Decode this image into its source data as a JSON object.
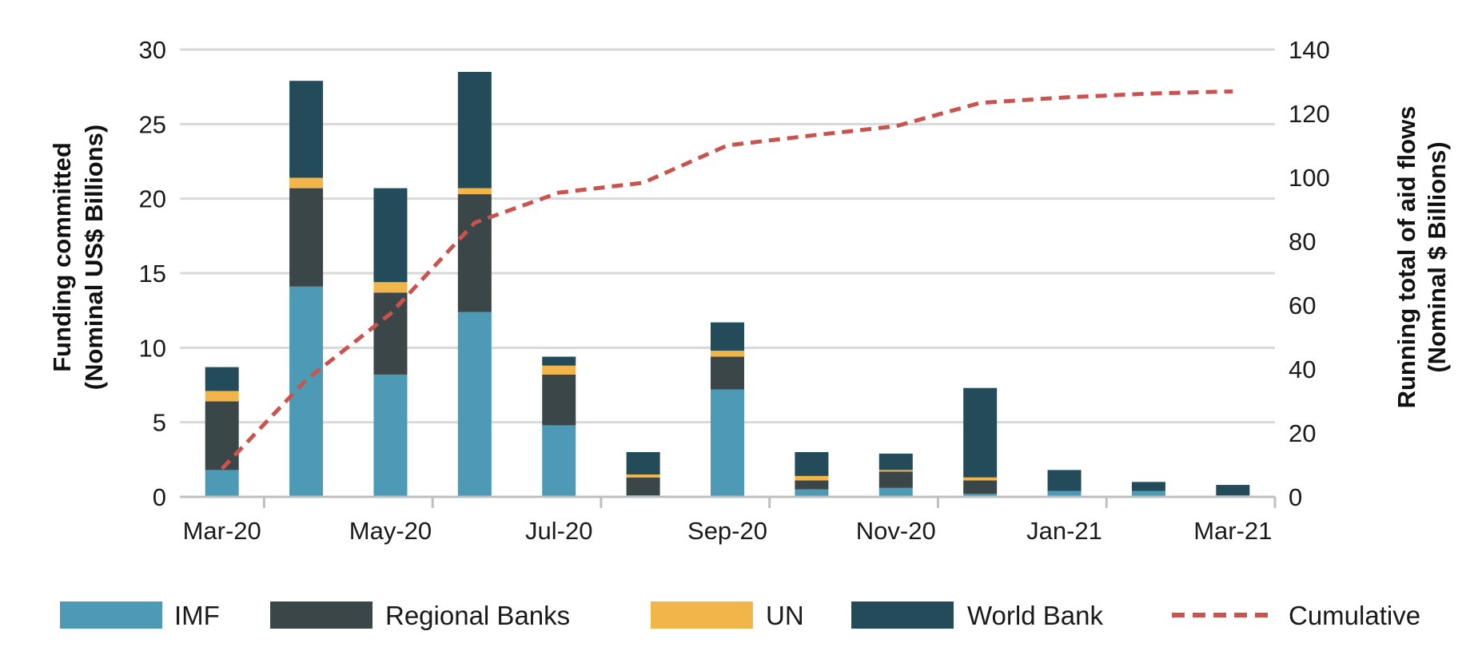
{
  "chart_data": {
    "type": "bar",
    "stacked": true,
    "categories": [
      "Mar-20",
      "Apr-20",
      "May-20",
      "Jun-20",
      "Jul-20",
      "Aug-20",
      "Sep-20",
      "Oct-20",
      "Nov-20",
      "Dec-20",
      "Jan-21",
      "Feb-21",
      "Mar-21"
    ],
    "x_tick_labels": [
      "Mar-20",
      "May-20",
      "Jul-20",
      "Sep-20",
      "Nov-20",
      "Jan-21",
      "Mar-21"
    ],
    "series": [
      {
        "name": "IMF",
        "color": "#4d9ab7",
        "values": [
          1.8,
          14.1,
          8.2,
          12.4,
          4.8,
          0.1,
          7.2,
          0.5,
          0.6,
          0.2,
          0.4,
          0.4,
          0.1
        ]
      },
      {
        "name": "Regional Banks",
        "color": "#3a4648",
        "values": [
          4.6,
          6.6,
          5.5,
          7.9,
          3.4,
          1.2,
          2.2,
          0.6,
          1.1,
          0.9,
          0.0,
          0.0,
          0.0
        ]
      },
      {
        "name": "UN",
        "color": "#f2b54a",
        "values": [
          0.7,
          0.7,
          0.7,
          0.4,
          0.6,
          0.2,
          0.4,
          0.3,
          0.1,
          0.2,
          0.0,
          0.0,
          0.0
        ]
      },
      {
        "name": "World Bank",
        "color": "#234b5a",
        "values": [
          1.6,
          6.5,
          6.3,
          7.8,
          0.6,
          1.5,
          1.9,
          1.6,
          1.1,
          6.0,
          1.4,
          0.6,
          0.7
        ]
      }
    ],
    "line_series": {
      "name": "Cumulative",
      "color": "#c9534f",
      "style": "dashed",
      "axis": "right",
      "values": [
        8.8,
        36.6,
        57.3,
        85.8,
        95.2,
        98.3,
        110.0,
        113.1,
        116.0,
        123.3,
        125.0,
        126.2,
        126.9
      ]
    },
    "ylabel": [
      "Funding committed",
      "(Nominal US$ Billions)"
    ],
    "y2label": [
      "Running total of aid flows",
      "(Nominal $ Billions)"
    ],
    "ylim": [
      0,
      30
    ],
    "y_ticks": [
      0,
      5,
      10,
      15,
      20,
      25,
      30
    ],
    "y2lim": [
      0,
      140
    ],
    "y2_ticks": [
      0,
      20,
      40,
      60,
      80,
      100,
      120,
      140
    ],
    "grid": true,
    "legend_position": "bottom"
  }
}
